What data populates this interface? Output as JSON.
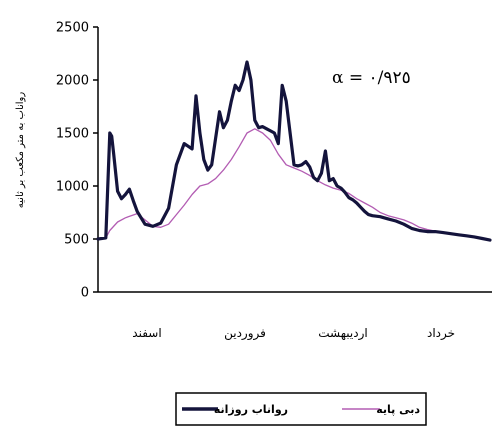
{
  "chart_data": {
    "type": "line",
    "ylabel": "رواناب به متر مکعب بر ثانیه",
    "ylim": [
      0,
      2500
    ],
    "yticks": [
      0,
      500,
      1000,
      1500,
      2000,
      2500
    ],
    "xlim": [
      0,
      100
    ],
    "months": [
      "اسفند",
      "فروردین",
      "اردیبهشت",
      "خرداد"
    ],
    "annotation": "α = ٠/٩٢٥",
    "legend": {
      "placement": "bottom-center"
    },
    "series": [
      {
        "name": "رواناب روزانه",
        "color": "#14143c",
        "x": [
          0,
          2,
          3,
          3.5,
          4,
          5,
          6,
          7,
          8,
          9,
          10,
          11,
          12,
          14,
          16,
          18,
          20,
          22,
          24,
          25,
          26,
          27,
          28,
          29,
          30,
          31,
          32,
          33,
          34,
          35,
          36,
          37,
          38,
          39,
          40,
          41,
          42,
          43,
          44,
          45,
          46,
          47,
          48,
          49,
          50,
          51,
          52,
          53,
          54,
          55,
          56,
          57,
          58,
          59,
          60,
          61,
          62,
          63,
          64,
          65,
          66,
          67,
          68,
          69,
          70,
          72,
          74,
          76,
          78,
          80,
          82,
          84,
          86,
          88,
          90,
          92,
          94,
          96,
          98,
          100
        ],
        "y": [
          500,
          510,
          1500,
          1470,
          1300,
          950,
          880,
          920,
          970,
          860,
          760,
          700,
          640,
          620,
          650,
          790,
          1200,
          1400,
          1350,
          1850,
          1500,
          1250,
          1150,
          1200,
          1450,
          1700,
          1550,
          1620,
          1800,
          1950,
          1900,
          2000,
          2170,
          2000,
          1620,
          1550,
          1560,
          1540,
          1520,
          1500,
          1400,
          1950,
          1800,
          1500,
          1200,
          1190,
          1200,
          1230,
          1180,
          1080,
          1050,
          1120,
          1330,
          1050,
          1070,
          1000,
          980,
          940,
          890,
          870,
          840,
          800,
          760,
          730,
          720,
          710,
          690,
          670,
          640,
          600,
          580,
          570,
          570,
          560,
          550,
          540,
          530,
          520,
          505,
          490
        ]
      },
      {
        "name": "دبی پایه",
        "color": "#b35db3",
        "x": [
          0,
          2,
          3,
          5,
          7,
          10,
          12,
          14,
          16,
          18,
          20,
          22,
          24,
          26,
          28,
          30,
          32,
          34,
          36,
          38,
          40,
          42,
          44,
          46,
          48,
          50,
          52,
          54,
          56,
          58,
          60,
          62,
          64,
          66,
          68,
          70,
          72,
          74,
          76,
          78,
          80,
          82,
          84,
          86,
          88,
          90,
          92,
          94,
          96,
          98,
          100
        ],
        "y": [
          500,
          510,
          580,
          660,
          700,
          740,
          680,
          620,
          610,
          640,
          730,
          820,
          920,
          1000,
          1020,
          1070,
          1150,
          1250,
          1370,
          1500,
          1540,
          1500,
          1430,
          1300,
          1200,
          1170,
          1140,
          1100,
          1050,
          1010,
          980,
          960,
          930,
          880,
          840,
          800,
          750,
          720,
          700,
          680,
          650,
          610,
          590,
          575,
          565,
          555,
          545,
          535,
          520,
          505,
          490
        ]
      }
    ]
  }
}
